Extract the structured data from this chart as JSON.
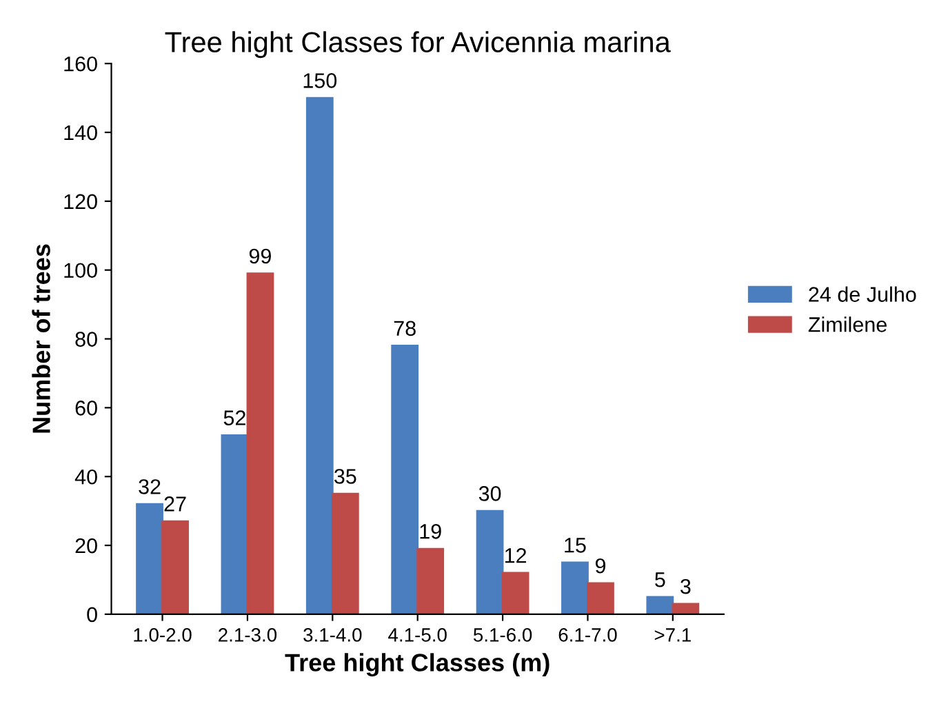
{
  "chart_data": {
    "type": "bar",
    "title": "Tree hight Classes for Avicennia marina",
    "xlabel": "Tree hight Classes (m)",
    "ylabel": "Number of trees",
    "categories": [
      "1.0-2.0",
      "2.1-3.0",
      "3.1-4.0",
      "4.1-5.0",
      "5.1-6.0",
      "6.1-7.0",
      ">7.1"
    ],
    "series": [
      {
        "name": "24 de Julho",
        "color": "#4a7ebf",
        "values": [
          32,
          52,
          150,
          78,
          30,
          15,
          5
        ]
      },
      {
        "name": "Zimilene",
        "color": "#be4b48",
        "values": [
          27,
          99,
          35,
          19,
          12,
          9,
          3
        ]
      }
    ],
    "ylim": [
      0,
      160
    ],
    "yticks": [
      0,
      20,
      40,
      60,
      80,
      100,
      120,
      140,
      160
    ],
    "data_labels": true,
    "legend": "right",
    "grid": false
  }
}
